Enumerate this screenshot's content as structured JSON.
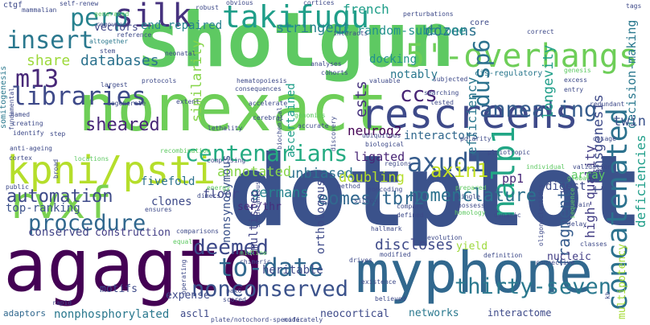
{
  "words": {
    "w0": "shotgun",
    "w1": "dotplot",
    "w2": "nonexact",
    "w3": "agagtg",
    "w4": "myphone",
    "w5": "rescreens",
    "w6": "takifugu",
    "w7": "5'-overhangs",
    "w8": "concatenated",
    "w9": "kpni/psti",
    "w10": "silk",
    "w11": "rvxf",
    "w12": "insert",
    "w13": "perp",
    "w14": "m13",
    "w15": "libraries",
    "w16": "centenarians",
    "w17": "procedure",
    "w18": "axud1",
    "w19": "nalp1",
    "w20": "annealing",
    "w21": "dusp6",
    "w22": "ccs",
    "w23": "to-date",
    "w24": "deemed",
    "w25": "thirty-seven",
    "w26": "nonconserved",
    "w27": "automation",
    "w28": "eomes/tbr2",
    "w29": "nomenclature",
    "w30": "axin1",
    "w31": "sheared",
    "w32": "databases",
    "w33": "share",
    "w34": "dozens",
    "w35": "random-subclone",
    "w36": "stringent",
    "w37": "french",
    "w38": "end-repaired",
    "w39": "vectors",
    "w40": "similarity",
    "w41": "transgenesis",
    "w42": "decision-making",
    "w43": "high-quality",
    "w44": "deficiencies",
    "w45": "multipotency",
    "w46": "longevity",
    "w47": "efficiency",
    "w48": "docking",
    "w49": "notably",
    "w50": "ascertained",
    "w51": "ests",
    "w52": "unbiased",
    "w53": "doubling",
    "w54": "annotated",
    "w55": "neurog2",
    "w56": "interactors",
    "w57": "fragments",
    "w58": "twin",
    "w59": "digest",
    "w60": "array",
    "w61": "ligated",
    "w62": "pp1",
    "w63": "germans",
    "w64": "ser/thr",
    "w65": "floor",
    "w66": "fivefold",
    "w67": "top-ranking",
    "w68": "clones",
    "w69": "conserved",
    "w70": "construction",
    "w71": "nonsynonymous",
    "w72": "orthologous",
    "w73": "multistep",
    "w74": "heritable",
    "w75": "discloses",
    "w76": "yield",
    "w77": "nucleic",
    "w78": "motifs",
    "w79": "expense",
    "w80": "nonphosphorylated",
    "w81": "adaptors",
    "w82": "ascl1",
    "w83": "neocortical",
    "w84": "networks",
    "w85": "interactome",
    "w86": "pax6",
    "w87": "somitogenesis",
    "w88": "fundamental",
    "w89": "mammalian",
    "w90": "self-renew",
    "w91": "ctgf",
    "w92": "obvious",
    "w93": "cortices",
    "w94": "tags",
    "w95": "robust",
    "w96": "generated",
    "w97": "perturbations",
    "w98": "removing",
    "w99": "reference",
    "w100": "interacts",
    "w101": "correct",
    "w102": "altogether",
    "w103": "stem",
    "w104": "neonatal",
    "w105": "core",
    "w106": "cis-regulatory",
    "w107": "genesis",
    "w108": "excess",
    "w109": "entry",
    "w110": "largest",
    "w111": "protocols",
    "w112": "hematopoiesis",
    "w113": "consequences",
    "w114": "analyses",
    "w115": "cohorts",
    "w116": "valuable",
    "w117": "subjected",
    "w118": "searching",
    "w119": "tested",
    "w120": "redundant",
    "w121": "dosage",
    "w122": "degenerate",
    "w123": "extent",
    "w124": "accelerate",
    "w125": "genomics",
    "w126": "polarity",
    "w127": "named",
    "w128": "creating",
    "w129": "identify",
    "w130": "step",
    "w131": "cerebral",
    "w132": "accurate",
    "w133": "ubiquitous",
    "w134": "biological",
    "w135": "lethality",
    "w136": "discovery",
    "w137": "biochemical",
    "w138": "anti-ageing",
    "w139": "recombination",
    "w140": "pleiotropic",
    "w141": "regions",
    "w142": "validation",
    "w143": "individual",
    "w144": "cortex",
    "w145": "locations",
    "w146": "comprising",
    "w147": "global",
    "w148": "prepared",
    "w149": "public",
    "w150": "broad",
    "w151": "energy",
    "w152": "dimers",
    "w153": "method",
    "w154": "noncoding",
    "w155": "single",
    "w156": "possess",
    "w157": "gain",
    "w158": "sequence",
    "w159": "ensures",
    "w160": "silico",
    "w161": "compare",
    "w162": "defined",
    "w163": "homology",
    "w164": "dynamic",
    "w165": "oligonucleotides",
    "w166": "delay",
    "w167": "classes",
    "w168": "comparisons",
    "w169": "equal",
    "w170": "hallmark",
    "w171": "evolution",
    "w172": "definition",
    "w173": "connective",
    "w174": "midline",
    "w175": "chimeric",
    "w176": "drives",
    "w177": "modified",
    "w178": "operating",
    "w179": "rapid",
    "w180": "scored",
    "w181": "plate/notochord-specific",
    "w182": "moderately",
    "w183": "believed",
    "w184": "existence",
    "w185": "kb",
    "w186": "simultaneously"
  },
  "colors": {
    "w0": "#5ec962",
    "w1": "#3b528b",
    "w2": "#6ece58",
    "w3": "#440154",
    "w4": "#31688e",
    "w5": "#3e4a89",
    "w6": "#1f9e89",
    "w7": "#6ece58",
    "w8": "#2c728e",
    "w9": "#b5de2b",
    "w10": "#46327e",
    "w11": "#7ad151",
    "w12": "#2a788e",
    "w13": "#26828e",
    "w14": "#482878",
    "w15": "#3e4a89",
    "w16": "#25ab82",
    "w17": "#31688e",
    "w18": "#365c8d",
    "w19": "#21a685",
    "w20": "#365c8d",
    "w21": "#2c728e",
    "w22": "#482475",
    "w23": "#31688e",
    "w24": "#3e4a89",
    "w25": "#2a788e",
    "w26": "#3b528b",
    "w27": "#3e4a89",
    "w28": "#31688e",
    "w29": "#2c728e",
    "w30": "#c2df23",
    "w31": "#482878",
    "w32": "#2c728e",
    "w33": "#9dd93b",
    "w34": "#2c728e",
    "w35": "#21918c",
    "w36": "#26828e",
    "w37": "#1f9e89",
    "w38": "#26828e",
    "w39": "#404688",
    "w40": "#86d549",
    "w41": "#3e4a89",
    "w42": "#2a788e",
    "w43": "#433e85",
    "w44": "#1f9e89",
    "w45": "#a5db36",
    "w46": "#1f9e89",
    "w47": "#2a788e",
    "w48": "#21918c",
    "w49": "#2a788e",
    "w50": "#1f9e89",
    "w51": "#46327e",
    "w52": "#2c728e",
    "w53": "#b5de2b",
    "w54": "#86d549",
    "w55": "#440154",
    "w56": "#31688e",
    "w57": "#365c8d",
    "w58": "#3b528b",
    "w59": "#3e4a89",
    "w60": "#5ec962",
    "w61": "#482475",
    "w62": "#482878",
    "w63": "#26828e",
    "w64": "#472d7b",
    "w65": "#404688",
    "w66": "#2c728e",
    "w67": "#3b528b",
    "w68": "#3e4a89",
    "w69": "#414487",
    "w70": "#433e85",
    "w71": "#3b528b",
    "w72": "#3e4a89",
    "w73": "#414487",
    "w74": "#3e4a89",
    "w75": "#3e4a89",
    "w76": "#9dd93b",
    "w77": "#433e85",
    "w78": "#3e4a89",
    "w79": "#3e4a89",
    "w80": "#2a788e",
    "w81": "#31688e",
    "w82": "#3e4a89",
    "w83": "#3e4a89",
    "w84": "#2a788e",
    "w85": "#3e4a89",
    "w86": "#3e4a89",
    "w87": "#2a788e",
    "w88": "#3e4a89",
    "w89": "#3e4a89",
    "w90": "#3e4a89",
    "w91": "#3e4a89",
    "w92": "#3e4a89",
    "w93": "#3e4a89",
    "w94": "#3e4a89",
    "w95": "#3e4a89",
    "w96": "#5ec962",
    "w97": "#3e4a89",
    "w98": "#3e4a89",
    "w99": "#3e4a89",
    "w100": "#3e4a89",
    "w101": "#3e4a89",
    "w102": "#2a788e",
    "w103": "#3e4a89",
    "w104": "#3e4a89",
    "w105": "#3e4a89",
    "w106": "#2a788e",
    "w107": "#5ec962",
    "w108": "#3e4a89",
    "w109": "#3e4a89",
    "w110": "#3e4a89",
    "w111": "#3e4a89",
    "w112": "#3e4a89",
    "w113": "#3e4a89",
    "w114": "#3e4a89",
    "w115": "#3e4a89",
    "w116": "#3e4a89",
    "w117": "#3e4a89",
    "w118": "#3e4a89",
    "w119": "#3e4a89",
    "w120": "#3e4a89",
    "w121": "#3e4a89",
    "w122": "#3e4a89",
    "w123": "#3e4a89",
    "w124": "#3e4a89",
    "w125": "#5ec962",
    "w126": "#3e4a89",
    "w127": "#3e4a89",
    "w128": "#3e4a89",
    "w129": "#3e4a89",
    "w130": "#3e4a89",
    "w131": "#3e4a89",
    "w132": "#3e4a89",
    "w133": "#3e4a89",
    "w134": "#3e4a89",
    "w135": "#3e4a89",
    "w136": "#3e4a89",
    "w137": "#3e4a89",
    "w138": "#3e4a89",
    "w139": "#5ec962",
    "w140": "#3e4a89",
    "w141": "#3e4a89",
    "w142": "#3e4a89",
    "w143": "#5ec962",
    "w144": "#3e4a89",
    "w145": "#5ec962",
    "w146": "#3e4a89",
    "w147": "#5ec962",
    "w148": "#5ec962",
    "w149": "#3e4a89",
    "w150": "#3e4a89",
    "w151": "#5ec962",
    "w152": "#3e4a89",
    "w153": "#3e4a89",
    "w154": "#3e4a89",
    "w155": "#3e4a89",
    "w156": "#3e4a89",
    "w157": "#3e4a89",
    "w158": "#5ec962",
    "w159": "#3e4a89",
    "w160": "#3e4a89",
    "w161": "#3e4a89",
    "w162": "#3e4a89",
    "w163": "#5ec962",
    "w164": "#3e4a89",
    "w165": "#3e4a89",
    "w166": "#3e4a89",
    "w167": "#3e4a89",
    "w168": "#3e4a89",
    "w169": "#5ec962",
    "w170": "#3e4a89",
    "w171": "#3e4a89",
    "w172": "#3e4a89",
    "w173": "#3e4a89",
    "w174": "#5ec962",
    "w175": "#3e4a89",
    "w176": "#3e4a89",
    "w177": "#3e4a89",
    "w178": "#3e4a89",
    "w179": "#3e4a89",
    "w180": "#3e4a89",
    "w181": "#3e4a89",
    "w182": "#3e4a89",
    "w183": "#3e4a89",
    "w184": "#3e4a89",
    "w185": "#3e4a89",
    "w186": "#3e4a89"
  }
}
